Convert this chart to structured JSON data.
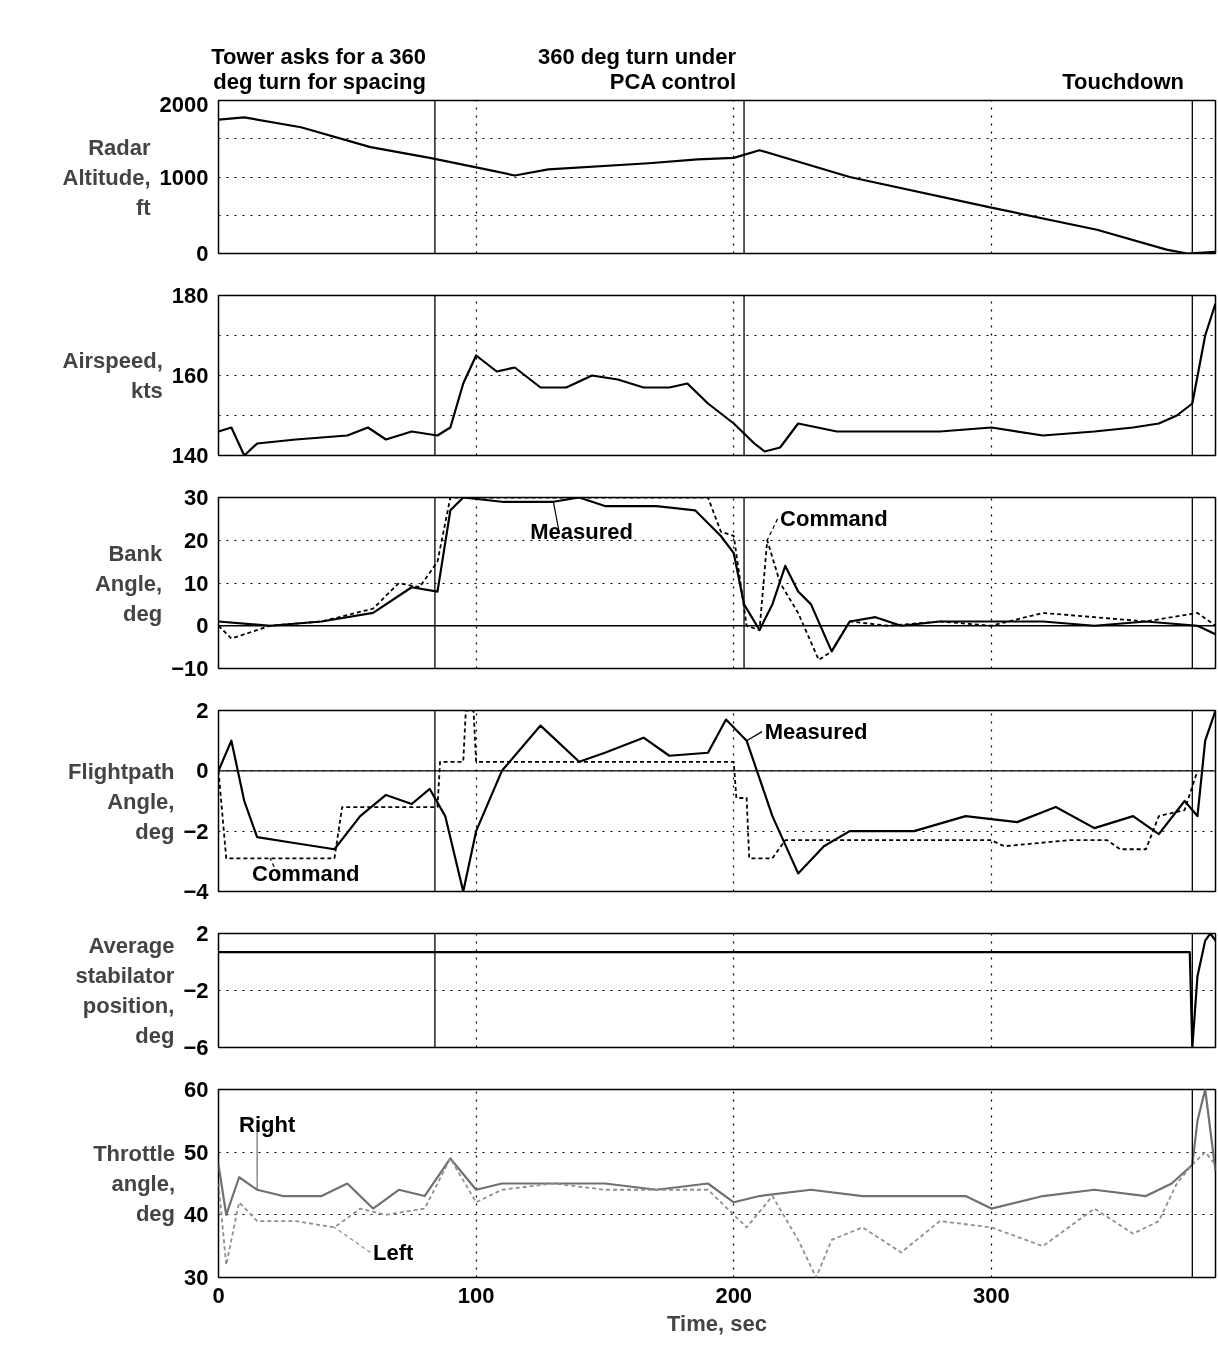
{
  "chart_data": [
    {
      "type": "line",
      "ylabel": "Radar\nAltitude,\nft",
      "xlim": [
        0,
        387
      ],
      "xticks": [
        0,
        100,
        200,
        300
      ],
      "ylim": [
        0,
        2000
      ],
      "yticks": [
        0,
        {
          "value": 500,
          "label": null
        },
        1000,
        {
          "value": 1500,
          "label": null
        },
        2000
      ],
      "grid": true,
      "tick_labels": "y",
      "ref_lines": [
        {
          "axis": "x",
          "value": 84,
          "label": "Tower asks for a 360 deg turn for spacing"
        },
        {
          "axis": "x",
          "value": 204,
          "label": "360 deg turn under PCA control"
        },
        {
          "axis": "x",
          "value": 378,
          "label": "Touchdown"
        }
      ],
      "series": [
        {
          "color": "#000000",
          "line_style": "solid",
          "x": [
            0,
            10,
            32,
            59,
            82,
            101,
            115,
            128,
            167,
            186,
            200,
            210,
            245,
            300,
            341,
            368,
            376,
            387
          ],
          "values": [
            1750,
            1780,
            1650,
            1390,
            1250,
            1120,
            1020,
            1100,
            1180,
            1230,
            1250,
            1350,
            1000,
            600,
            310,
            50,
            0,
            20
          ]
        }
      ]
    },
    {
      "type": "line",
      "ylabel": "Airspeed,\nkts",
      "xlim": [
        0,
        387
      ],
      "xticks": [
        0,
        100,
        200,
        300
      ],
      "ylim": [
        140,
        180
      ],
      "yticks": [
        140,
        {
          "value": 150,
          "label": null
        },
        160,
        {
          "value": 170,
          "label": null
        },
        180
      ],
      "grid": true,
      "tick_labels": "y",
      "ref_lines": [
        {
          "axis": "x",
          "value": 84
        },
        {
          "axis": "x",
          "value": 204
        },
        {
          "axis": "x",
          "value": 378
        }
      ],
      "series": [
        {
          "color": "#000000",
          "line_style": "solid",
          "x": [
            0,
            5,
            10,
            15,
            30,
            50,
            58,
            65,
            75,
            85,
            90,
            95,
            100,
            108,
            115,
            125,
            135,
            145,
            155,
            165,
            175,
            182,
            190,
            200,
            208,
            212,
            218,
            225,
            240,
            260,
            280,
            300,
            320,
            340,
            355,
            365,
            372,
            378,
            383,
            387
          ],
          "values": [
            146,
            147,
            140,
            143,
            144,
            145,
            147,
            144,
            146,
            145,
            147,
            158,
            165,
            161,
            162,
            157,
            157,
            160,
            159,
            157,
            157,
            158,
            153,
            148,
            143,
            141,
            142,
            148,
            146,
            146,
            146,
            147,
            145,
            146,
            147,
            148,
            150,
            153,
            170,
            178
          ]
        }
      ]
    },
    {
      "type": "line",
      "ylabel": "Bank\nAngle,\ndeg",
      "xlim": [
        0,
        387
      ],
      "xticks": [
        0,
        100,
        200,
        300
      ],
      "ylim": [
        -10,
        30
      ],
      "yticks": [
        -10,
        0,
        10,
        20,
        30
      ],
      "grid": true,
      "tick_labels": "y",
      "ref_lines": [
        {
          "axis": "y",
          "value": 0
        },
        {
          "axis": "x",
          "value": 84
        },
        {
          "axis": "x",
          "value": 204
        },
        {
          "axis": "x",
          "value": 378
        }
      ],
      "series": [
        {
          "name": "Measured",
          "color": "#000000",
          "line_style": "solid",
          "x": [
            0,
            20,
            40,
            60,
            75,
            85,
            90,
            95,
            110,
            130,
            140,
            150,
            170,
            185,
            195,
            200,
            204,
            210,
            215,
            220,
            225,
            230,
            238,
            245,
            255,
            265,
            280,
            300,
            320,
            340,
            360,
            380,
            387
          ],
          "values": [
            1,
            0,
            1,
            3,
            9,
            8,
            27,
            30,
            29,
            29,
            30,
            28,
            28,
            27,
            21,
            17,
            5,
            -1,
            5,
            14,
            8,
            5,
            -6,
            1,
            2,
            0,
            1,
            1,
            1,
            0,
            1,
            0,
            -2
          ]
        },
        {
          "name": "Command",
          "color": "#000000",
          "line_style": "dotted",
          "x": [
            0,
            5,
            20,
            40,
            60,
            70,
            78,
            85,
            90,
            95,
            190,
            195,
            200,
            205,
            210,
            213,
            218,
            225,
            233,
            238,
            245,
            260,
            280,
            300,
            320,
            340,
            360,
            380,
            387
          ],
          "values": [
            0,
            -3,
            0,
            1,
            4,
            10,
            9,
            15,
            30,
            30,
            30,
            22,
            21,
            0,
            -1,
            20,
            10,
            3,
            -8,
            -6,
            1,
            0,
            1,
            0,
            3,
            2,
            1,
            3,
            0
          ]
        }
      ]
    },
    {
      "type": "line",
      "ylabel": "Flightpath\nAngle,\ndeg",
      "xlim": [
        0,
        387
      ],
      "xticks": [
        0,
        100,
        200,
        300
      ],
      "ylim": [
        -4,
        2
      ],
      "yticks": [
        -4,
        -2,
        0,
        2
      ],
      "grid": true,
      "tick_labels": "y",
      "ref_lines": [
        {
          "axis": "y",
          "value": 0
        },
        {
          "axis": "x",
          "value": 84
        },
        {
          "axis": "x",
          "value": 378
        }
      ],
      "series": [
        {
          "name": "Measured",
          "color": "#000000",
          "line_style": "solid",
          "x": [
            0,
            5,
            10,
            15,
            30,
            45,
            55,
            65,
            75,
            82,
            88,
            95,
            100,
            110,
            125,
            140,
            150,
            165,
            175,
            190,
            197,
            205,
            215,
            225,
            235,
            245,
            270,
            290,
            310,
            325,
            340,
            355,
            365,
            375,
            380,
            383,
            387
          ],
          "values": [
            0,
            1,
            -1,
            -2.2,
            -2.4,
            -2.6,
            -1.5,
            -0.8,
            -1.1,
            -0.6,
            -1.5,
            -4,
            -2,
            0,
            1.5,
            0.3,
            0.6,
            1.1,
            0.5,
            0.6,
            1.7,
            1,
            -1.5,
            -3.4,
            -2.5,
            -2,
            -2,
            -1.5,
            -1.7,
            -1.2,
            -1.9,
            -1.5,
            -2.1,
            -1,
            -1.5,
            1,
            2
          ]
        },
        {
          "name": "Command",
          "color": "#000000",
          "line_style": "dotted",
          "x": [
            0,
            3,
            45,
            48,
            85,
            86,
            95,
            96,
            99,
            100,
            200,
            201,
            205,
            206,
            215,
            220,
            300,
            305,
            330,
            345,
            350,
            360,
            365,
            375,
            380
          ],
          "values": [
            0,
            -2.9,
            -2.9,
            -1.2,
            -1.2,
            0.3,
            0.3,
            2,
            2,
            0.3,
            0.3,
            -0.9,
            -0.9,
            -2.9,
            -2.9,
            -2.3,
            -2.3,
            -2.5,
            -2.3,
            -2.3,
            -2.6,
            -2.6,
            -1.5,
            -1.3,
            0
          ]
        }
      ]
    },
    {
      "type": "line",
      "ylabel": "Average\nstabilator\nposition,\ndeg",
      "xlim": [
        0,
        387
      ],
      "xticks": [
        0,
        100,
        200,
        300
      ],
      "ylim": [
        -6,
        2
      ],
      "yticks": [
        -6,
        -2,
        2
      ],
      "grid": true,
      "tick_labels": "y",
      "ref_lines": [
        {
          "axis": "x",
          "value": 84
        },
        {
          "axis": "x",
          "value": 378
        }
      ],
      "series": [
        {
          "color": "#000000",
          "line_style": "solid",
          "x": [
            0,
            100,
            200,
            300,
            377,
            378,
            380,
            383,
            385,
            387
          ],
          "values": [
            0.7,
            0.7,
            0.7,
            0.7,
            0.7,
            -6,
            -1,
            1.5,
            2,
            1.5
          ]
        }
      ]
    },
    {
      "type": "line",
      "xlabel": "Time, sec",
      "ylabel": "Throttle\nangle,\ndeg",
      "xlim": [
        0,
        387
      ],
      "xticks": [
        0,
        100,
        200,
        300
      ],
      "ylim": [
        30,
        60
      ],
      "yticks": [
        30,
        40,
        50,
        60
      ],
      "grid": true,
      "ref_lines": [
        {
          "axis": "x",
          "value": 378
        }
      ],
      "series": [
        {
          "name": "Right",
          "color": "#707070",
          "line_style": "solid",
          "x": [
            0,
            3,
            8,
            15,
            25,
            40,
            50,
            60,
            70,
            80,
            90,
            100,
            110,
            130,
            150,
            170,
            190,
            200,
            210,
            230,
            250,
            270,
            290,
            300,
            320,
            340,
            360,
            370,
            378,
            380,
            383,
            387
          ],
          "values": [
            48,
            40,
            46,
            44,
            43,
            43,
            45,
            41,
            44,
            43,
            49,
            44,
            45,
            45,
            45,
            44,
            45,
            42,
            43,
            44,
            43,
            43,
            43,
            41,
            43,
            44,
            43,
            45,
            48,
            55,
            60,
            47
          ]
        },
        {
          "name": "Left",
          "color": "#909090",
          "line_style": "dotted",
          "x": [
            0,
            3,
            8,
            15,
            30,
            45,
            55,
            65,
            80,
            90,
            100,
            110,
            130,
            150,
            170,
            190,
            200,
            205,
            215,
            225,
            232,
            238,
            250,
            265,
            280,
            300,
            320,
            340,
            355,
            365,
            372,
            378,
            383,
            387
          ],
          "values": [
            45,
            32,
            42,
            39,
            39,
            38,
            41,
            40,
            41,
            49,
            42,
            44,
            45,
            44,
            44,
            44,
            40,
            38,
            43,
            36,
            30,
            36,
            38,
            34,
            39,
            38,
            35,
            41,
            37,
            39,
            45,
            48,
            50,
            48
          ]
        }
      ]
    }
  ]
}
